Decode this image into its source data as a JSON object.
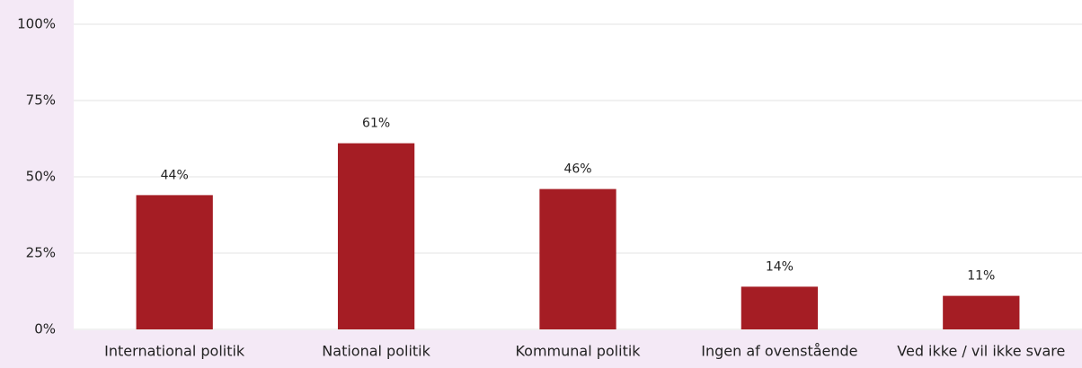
{
  "chart_data": {
    "type": "bar",
    "categories": [
      "International politik",
      "National politik",
      "Kommunal politik",
      "Ingen af ovenstående",
      "Ved ikke / vil ikke svare"
    ],
    "values": [
      44,
      61,
      46,
      14,
      11
    ],
    "value_labels": [
      "44%",
      "61%",
      "46%",
      "14%",
      "11%"
    ],
    "color": "#a51d24",
    "ylim": [
      0,
      100
    ],
    "yticks": [
      {
        "value": 0,
        "label": "0%"
      },
      {
        "value": 25,
        "label": "25%"
      },
      {
        "value": 50,
        "label": "50%"
      },
      {
        "value": 75,
        "label": "75%"
      },
      {
        "value": 100,
        "label": "100%"
      }
    ],
    "grid": true
  }
}
